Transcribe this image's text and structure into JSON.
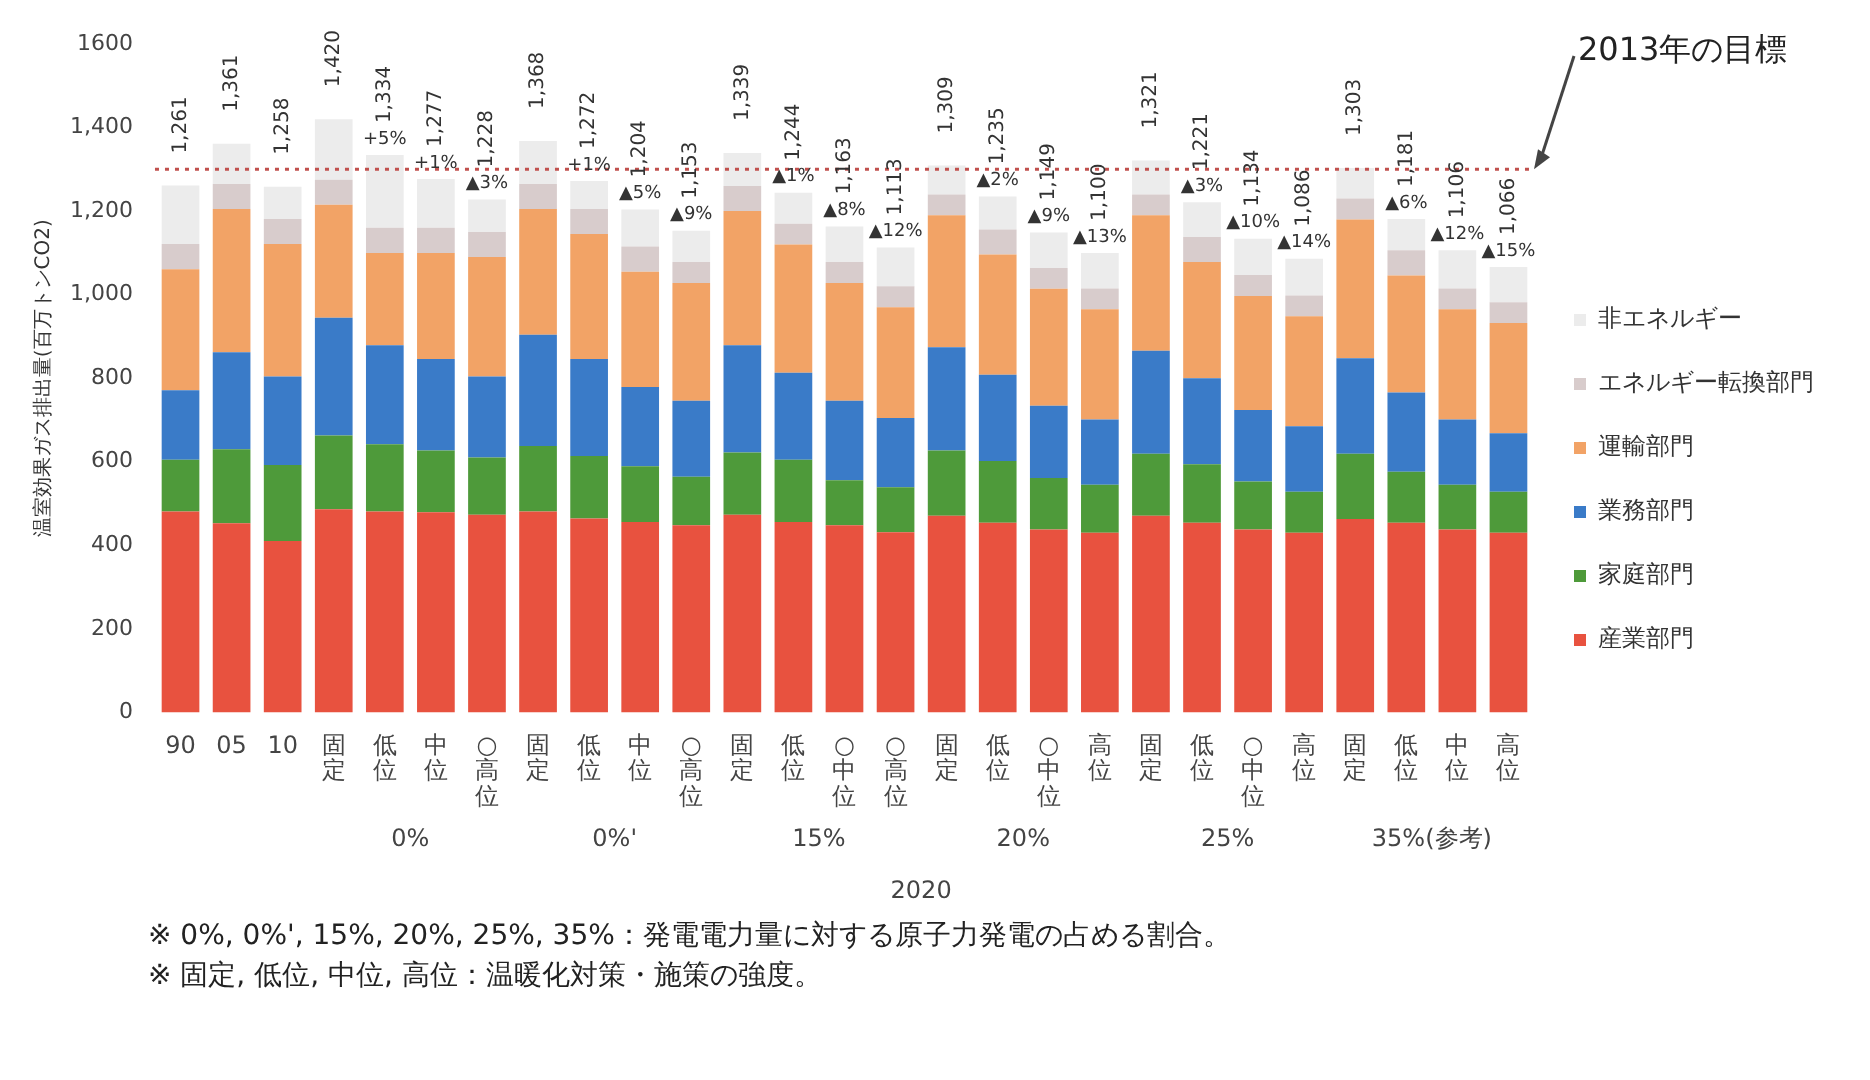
{
  "chart_data": {
    "type": "bar",
    "stacked": true,
    "ylabel": "温室効果ガス排出量(百万トンCO2)",
    "categories": [
      "90",
      "05",
      "10",
      "固定",
      "低位",
      "中位",
      "○高位",
      "固定",
      "低位",
      "中位",
      "○高位",
      "固定",
      "低位",
      "○中位",
      "○高位",
      "固定",
      "低位",
      "○中位",
      "高位",
      "固定",
      "低位",
      "○中位",
      "高位",
      "固定",
      "低位",
      "中位",
      "高位"
    ],
    "series": [
      {
        "name": "産業部門",
        "color": "#e8523f",
        "values": [
          481,
          453,
          410,
          486,
          481,
          479,
          473,
          481,
          464,
          456,
          448,
          473,
          456,
          448,
          431,
          471,
          454,
          438,
          430,
          471,
          454,
          438,
          430,
          463,
          454,
          438,
          430
        ]
      },
      {
        "name": "家庭部門",
        "color": "#4e9a3a",
        "values": [
          124,
          177,
          182,
          177,
          161,
          148,
          137,
          157,
          150,
          133,
          116,
          149,
          149,
          108,
          108,
          156,
          148,
          123,
          115,
          148,
          140,
          115,
          98,
          156,
          122,
          107,
          98
        ]
      },
      {
        "name": "業務部門",
        "color": "#3a7bc8",
        "values": [
          166,
          232,
          212,
          282,
          237,
          219,
          194,
          266,
          232,
          190,
          182,
          257,
          208,
          190,
          166,
          247,
          206,
          173,
          156,
          247,
          206,
          171,
          157,
          229,
          190,
          156,
          140
        ]
      },
      {
        "name": "運輸部門",
        "color": "#f2a366",
        "values": [
          290,
          343,
          317,
          270,
          221,
          254,
          286,
          301,
          299,
          276,
          282,
          321,
          307,
          282,
          265,
          316,
          288,
          280,
          264,
          324,
          278,
          273,
          263,
          332,
          280,
          264,
          264
        ]
      },
      {
        "name": "エネルギー転換部門",
        "color": "#d8cccc",
        "values": [
          60,
          60,
          60,
          60,
          60,
          60,
          60,
          60,
          60,
          60,
          50,
          60,
          50,
          50,
          50,
          50,
          60,
          50,
          50,
          50,
          60,
          50,
          50,
          50,
          60,
          50,
          50
        ]
      },
      {
        "name": "非エネルギー",
        "color": "#ececec",
        "values": [
          140,
          96,
          77,
          145,
          174,
          117,
          78,
          103,
          67,
          89,
          75,
          79,
          74,
          85,
          93,
          69,
          79,
          85,
          85,
          81,
          83,
          87,
          88,
          73,
          75,
          91,
          84
        ]
      }
    ],
    "totals": [
      "1,261",
      "1,361",
      "1,258",
      "1,420",
      "1,334",
      "1,277",
      "1,228",
      "1,368",
      "1,272",
      "1,204",
      "1,153",
      "1,339",
      "1,244",
      "1,163",
      "1,113",
      "1,309",
      "1,235",
      "1,149",
      "1,100",
      "1,321",
      "1,221",
      "1,134",
      "1,086",
      "1,303",
      "1,181",
      "1,106",
      "1,066"
    ],
    "ylim": [
      0,
      1600
    ],
    "yticks": [
      0,
      200,
      400,
      600,
      800,
      {
        "value": 1000,
        "label": "1,000"
      },
      {
        "value": 1200,
        "label": "1,200"
      },
      {
        "value": 1400,
        "label": "1,400"
      },
      1600
    ],
    "ref_lines": [
      {
        "axis": "y",
        "value": 1300,
        "label": "2013年の目標",
        "color": "#c0504d",
        "line_style": "dotted"
      }
    ],
    "legend": "right",
    "grid": false,
    "annotations": [
      "0%",
      "0%'",
      "15%",
      "20%",
      "25%",
      "35%(参考)",
      "2020",
      "※ 0%, 0%', 15%, 20%, 25%, 35%：発電電力量に対する原子力発電の占める割合。",
      "※ 固定, 低位, 中位, 高位：温暖化対策・施策の強度。",
      "+5%",
      "+1%",
      "▲3%",
      "+1%",
      "▲5%",
      "▲9%",
      "▲1%",
      "▲8%",
      "▲12%",
      "▲2%",
      "▲9%",
      "▲13%",
      "▲3%",
      "▲10%",
      "▲14%",
      "▲6%",
      "▲12%",
      "▲15%"
    ]
  }
}
